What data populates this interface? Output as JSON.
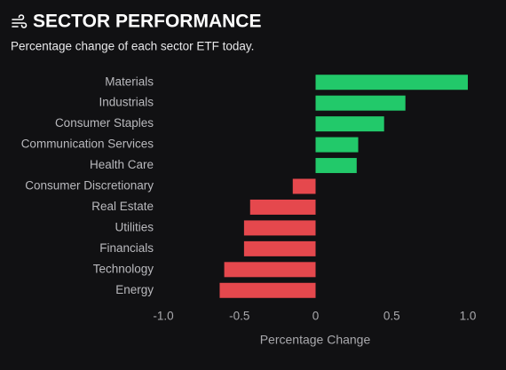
{
  "chart_data": {
    "type": "bar",
    "orientation": "horizontal",
    "title": "SECTOR PERFORMANCE",
    "subtitle": "Percentage change of each sector ETF today.",
    "xlabel": "Percentage Change",
    "categories": [
      "Materials",
      "Industrials",
      "Consumer Staples",
      "Communication Services",
      "Health Care",
      "Consumer Discretionary",
      "Real Estate",
      "Utilities",
      "Financials",
      "Technology",
      "Energy"
    ],
    "values": [
      1.0,
      0.59,
      0.45,
      0.28,
      0.27,
      -0.15,
      -0.43,
      -0.47,
      -0.47,
      -0.6,
      -0.63
    ],
    "positive_color": "#22c96a",
    "negative_color": "#e5484d",
    "xlim": [
      -1.0,
      1.0
    ],
    "xticks": [
      {
        "value": -1.0,
        "label": "-1.0"
      },
      -0.5,
      0,
      0.5,
      {
        "value": 1.0,
        "label": "1.0"
      }
    ],
    "grid": false
  }
}
